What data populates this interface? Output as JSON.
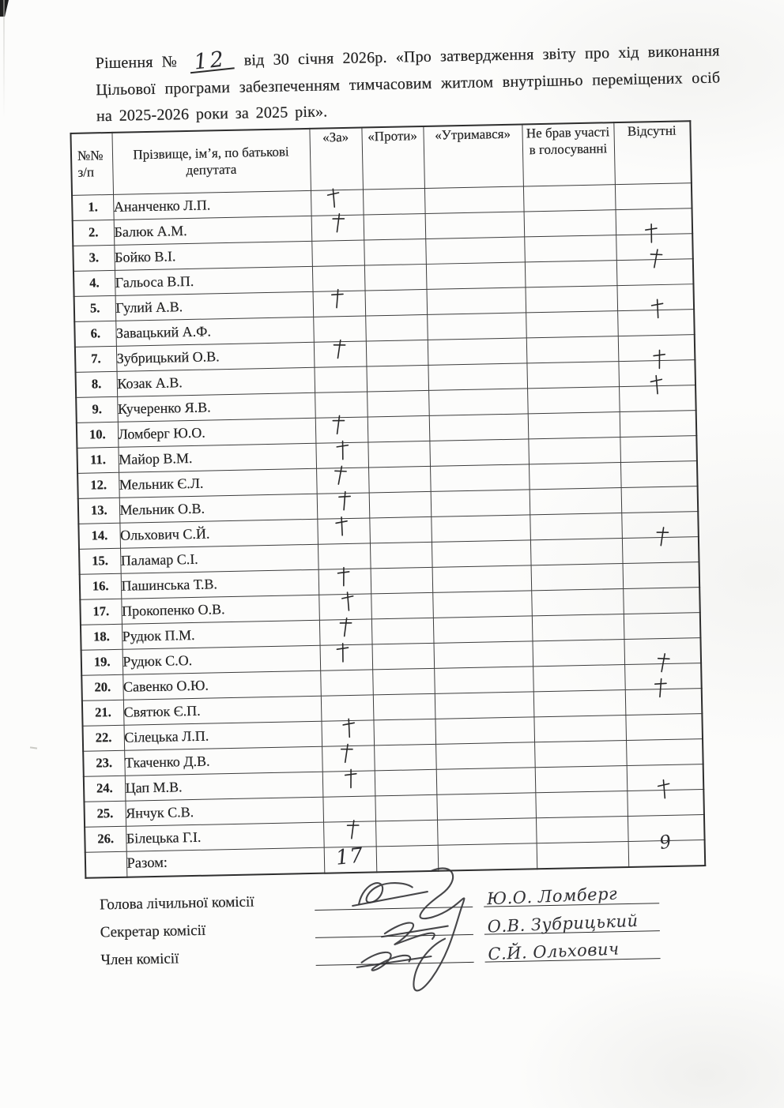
{
  "document": {
    "title_prefix": "Рішення №",
    "decision_number": "12",
    "title_suffix": "від  30 січня 2026р. «Про затвердження звіту про хід виконання Цільової програми забезпеченням тимчасовим житлом внутрішньо переміщених осіб на 2025-2026 роки за 2025 рік»."
  },
  "table": {
    "headers": [
      "№№ з/п",
      "Прізвище, ім’я, по батькові депутата",
      "«За»",
      "«Проти»",
      "«Утримався»",
      "Не брав участі в голосуванні",
      "Відсутні"
    ],
    "rows": [
      {
        "num": "1.",
        "name": "Ананченко Л.П.",
        "za": "+",
        "proty": "",
        "utrymavsia": "",
        "ne_brav": "",
        "vidsutni": ""
      },
      {
        "num": "2.",
        "name": "Балюк А.М.",
        "za": "+",
        "proty": "",
        "utrymavsia": "",
        "ne_brav": "",
        "vidsutni": ""
      },
      {
        "num": "3.",
        "name": "Бойко В.І.",
        "za": "",
        "proty": "",
        "utrymavsia": "",
        "ne_brav": "",
        "vidsutni": "+"
      },
      {
        "num": "4.",
        "name": "Гальоса В.П.",
        "za": "",
        "proty": "",
        "utrymavsia": "",
        "ne_brav": "",
        "vidsutni": "+"
      },
      {
        "num": "5.",
        "name": "Гулий А.В.",
        "za": "+",
        "proty": "",
        "utrymavsia": "",
        "ne_brav": "",
        "vidsutni": ""
      },
      {
        "num": "6.",
        "name": "Завацький А.Ф.",
        "za": "",
        "proty": "",
        "utrymavsia": "",
        "ne_brav": "",
        "vidsutni": "+"
      },
      {
        "num": "7.",
        "name": "Зубрицький О.В.",
        "za": "+",
        "proty": "",
        "utrymavsia": "",
        "ne_brav": "",
        "vidsutni": ""
      },
      {
        "num": "8.",
        "name": "Козак А.В.",
        "za": "",
        "proty": "",
        "utrymavsia": "",
        "ne_brav": "",
        "vidsutni": "+"
      },
      {
        "num": "9.",
        "name": "Кучеренко Я.В.",
        "za": "",
        "proty": "",
        "utrymavsia": "",
        "ne_brav": "",
        "vidsutni": "+"
      },
      {
        "num": "10.",
        "name": "Ломберг Ю.О.",
        "za": "+",
        "proty": "",
        "utrymavsia": "",
        "ne_brav": "",
        "vidsutni": ""
      },
      {
        "num": "11.",
        "name": "Майор В.М.",
        "za": "+",
        "proty": "",
        "utrymavsia": "",
        "ne_brav": "",
        "vidsutni": ""
      },
      {
        "num": "12.",
        "name": "Мельник Є.Л.",
        "za": "+",
        "proty": "",
        "utrymavsia": "",
        "ne_brav": "",
        "vidsutni": ""
      },
      {
        "num": "13.",
        "name": "Мельник О.В.",
        "za": "+",
        "proty": "",
        "utrymavsia": "",
        "ne_brav": "",
        "vidsutni": ""
      },
      {
        "num": "14.",
        "name": "Ольхович С.Й.",
        "za": "+",
        "proty": "",
        "utrymavsia": "",
        "ne_brav": "",
        "vidsutni": ""
      },
      {
        "num": "15.",
        "name": "Паламар С.І.",
        "za": "",
        "proty": "",
        "utrymavsia": "",
        "ne_brav": "",
        "vidsutni": "+"
      },
      {
        "num": "16.",
        "name": "Пашинська Т.В.",
        "za": "+",
        "proty": "",
        "utrymavsia": "",
        "ne_brav": "",
        "vidsutni": ""
      },
      {
        "num": "17.",
        "name": "Прокопенко О.В.",
        "za": "+",
        "proty": "",
        "utrymavsia": "",
        "ne_brav": "",
        "vidsutni": ""
      },
      {
        "num": "18.",
        "name": "Рудюк П.М.",
        "za": "+",
        "proty": "",
        "utrymavsia": "",
        "ne_brav": "",
        "vidsutni": ""
      },
      {
        "num": "19.",
        "name": "Рудюк С.О.",
        "za": "+",
        "proty": "",
        "utrymavsia": "",
        "ne_brav": "",
        "vidsutni": ""
      },
      {
        "num": "20.",
        "name": "Савенко О.Ю.",
        "za": "",
        "proty": "",
        "utrymavsia": "",
        "ne_brav": "",
        "vidsutni": "+"
      },
      {
        "num": "21.",
        "name": "Святюк Є.П.",
        "za": "",
        "proty": "",
        "utrymavsia": "",
        "ne_brav": "",
        "vidsutni": "+"
      },
      {
        "num": "22.",
        "name": "Сілецька Л.П.",
        "za": "+",
        "proty": "",
        "utrymavsia": "",
        "ne_brav": "",
        "vidsutni": ""
      },
      {
        "num": "23.",
        "name": "Ткаченко Д.В.",
        "za": "+",
        "proty": "",
        "utrymavsia": "",
        "ne_brav": "",
        "vidsutni": ""
      },
      {
        "num": "24.",
        "name": "Цап М.В.",
        "za": "+",
        "proty": "",
        "utrymavsia": "",
        "ne_brav": "",
        "vidsutni": ""
      },
      {
        "num": "25.",
        "name": "Янчук С.В.",
        "za": "",
        "proty": "",
        "utrymavsia": "",
        "ne_brav": "",
        "vidsutni": "+"
      },
      {
        "num": "26.",
        "name": "Білецька Г.І.",
        "za": "+",
        "proty": "",
        "utrymavsia": "",
        "ne_brav": "",
        "vidsutni": ""
      }
    ],
    "total": {
      "label": "Разом:",
      "za": "17",
      "proty": "",
      "utrymavsia": "",
      "ne_brav": "",
      "vidsutni": "9"
    }
  },
  "signatures": [
    {
      "role": "Голова лічильної комісії",
      "name": "Ю.О. Ломберг"
    },
    {
      "role": "Секретар комісії",
      "name": "О.В. Зубрицький"
    },
    {
      "role": "Член комісії",
      "name": "С.Й. Ольхович"
    }
  ]
}
